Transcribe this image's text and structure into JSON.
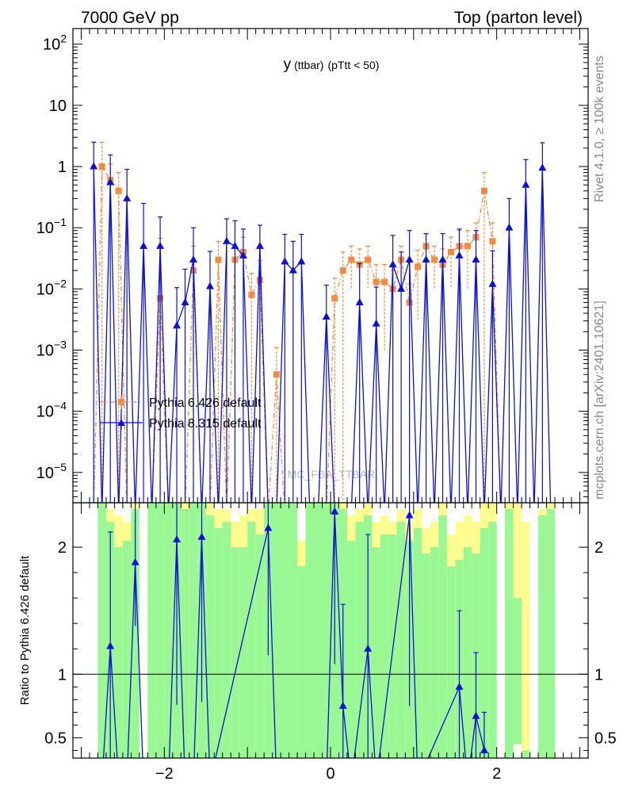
{
  "header": {
    "left": "7000 GeV pp",
    "right": "Top (parton level)"
  },
  "side_labels": {
    "rivet": "Rivet 4.1.0, ≥ 100k events",
    "mcplots": "mcplots.cern.ch [arXiv:2401.10621]"
  },
  "chart_data": [
    {
      "type": "line",
      "panel": "main",
      "title": "y (ttbar) (pTtt < 50)",
      "title_main": "y",
      "title_sub1": "(ttbar)",
      "title_sub2": "(pTtt < 50)",
      "watermark": "MC_FBA_TTBAR",
      "xlabel": "",
      "ylabel": "",
      "yscale": "log",
      "xlim": [
        -3.1,
        3.1
      ],
      "ylim": [
        3.2e-06,
        180
      ],
      "y_ticks": [
        {
          "v": 1e-05,
          "mant": "10",
          "exp": "−5"
        },
        {
          "v": 0.0001,
          "mant": "10",
          "exp": "−4"
        },
        {
          "v": 0.001,
          "mant": "10",
          "exp": "−3"
        },
        {
          "v": 0.01,
          "mant": "10",
          "exp": "−2"
        },
        {
          "v": 0.1,
          "mant": "10",
          "exp": "−1"
        },
        {
          "v": 1,
          "mant": "1",
          "exp": ""
        },
        {
          "v": 10,
          "mant": "10",
          "exp": ""
        },
        {
          "v": 100,
          "mant": "10",
          "exp": "2"
        }
      ],
      "legend_position": "center-left",
      "series": [
        {
          "name": "Pythia 6.426 default",
          "color": "#f58a40",
          "marker": "square",
          "style": "dash-dot",
          "x": [
            -2.85,
            -2.75,
            -2.65,
            -2.55,
            -2.45,
            -2.35,
            -2.25,
            -2.15,
            -2.05,
            -1.95,
            -1.85,
            -1.75,
            -1.65,
            -1.55,
            -1.45,
            -1.35,
            -1.25,
            -1.15,
            -1.05,
            -0.95,
            -0.85,
            -0.75,
            -0.65,
            -0.55,
            -0.45,
            -0.35,
            -0.25,
            -0.15,
            -0.05,
            0.05,
            0.15,
            0.25,
            0.35,
            0.45,
            0.55,
            0.65,
            0.75,
            0.85,
            0.95,
            1.05,
            1.15,
            1.25,
            1.35,
            1.45,
            1.55,
            1.65,
            1.75,
            1.85,
            1.95,
            2.05,
            2.15,
            2.25,
            2.35,
            2.45,
            2.55,
            2.65,
            2.75,
            2.85
          ],
          "y": [
            0,
            1.0,
            0.6,
            0.4,
            0,
            0,
            0,
            0,
            0.007,
            0,
            0,
            0,
            0.02,
            0,
            0,
            0.03,
            0,
            0.03,
            0.04,
            0.008,
            0.014,
            0,
            0.0004,
            0,
            0,
            0,
            0,
            0,
            0,
            0.007,
            0.02,
            0.03,
            0.025,
            0.03,
            0.013,
            0.013,
            0.01,
            0.03,
            0.006,
            0.023,
            0.05,
            0.03,
            0.025,
            0.04,
            0.05,
            0.05,
            0.07,
            0.4,
            0.06,
            0,
            0,
            0,
            0,
            0,
            0,
            0,
            0,
            0
          ],
          "yerr": [
            0,
            1.5,
            0.5,
            0.4,
            0,
            0,
            0,
            0,
            0.06,
            0,
            0,
            0,
            0.03,
            0,
            0,
            0.03,
            0,
            0.02,
            0.03,
            0.01,
            0.015,
            0,
            0.0007,
            0,
            0,
            0,
            0,
            0,
            0,
            0.008,
            0.02,
            0.02,
            0.02,
            0.02,
            0.012,
            0.012,
            0.01,
            0.02,
            0.006,
            0.02,
            0.03,
            0.02,
            0.02,
            0.03,
            0.04,
            0.04,
            0.05,
            0.4,
            0.06,
            0,
            0,
            0,
            0,
            0,
            0,
            0,
            0,
            0
          ]
        },
        {
          "name": "Pythia 8.315 default",
          "color": "#0a10d6",
          "marker": "triangle",
          "style": "solid",
          "x": [
            -2.85,
            -2.75,
            -2.65,
            -2.55,
            -2.45,
            -2.35,
            -2.25,
            -2.15,
            -2.05,
            -1.95,
            -1.85,
            -1.75,
            -1.65,
            -1.55,
            -1.45,
            -1.35,
            -1.25,
            -1.15,
            -1.05,
            -0.95,
            -0.85,
            -0.75,
            -0.65,
            -0.55,
            -0.45,
            -0.35,
            -0.25,
            -0.15,
            -0.05,
            0.05,
            0.15,
            0.25,
            0.35,
            0.45,
            0.55,
            0.65,
            0.75,
            0.85,
            0.95,
            1.05,
            1.15,
            1.25,
            1.35,
            1.45,
            1.55,
            1.65,
            1.75,
            1.85,
            1.95,
            2.05,
            2.15,
            2.25,
            2.35,
            2.45,
            2.55,
            2.65,
            2.75,
            2.85
          ],
          "y": [
            1.0,
            0,
            0.55,
            0,
            0.3,
            0,
            0.05,
            0,
            0.05,
            0,
            0.0025,
            0.006,
            0.03,
            0,
            0.011,
            0,
            0.06,
            0.05,
            0.035,
            0,
            0.05,
            0,
            0,
            0.028,
            0.02,
            0.028,
            0,
            0,
            0.0035,
            0,
            0,
            0,
            0.006,
            0,
            0.0027,
            0,
            0.025,
            0.01,
            0.03,
            0,
            0.03,
            0,
            0.03,
            0,
            0.035,
            0,
            0.03,
            0,
            0.012,
            0,
            0.1,
            0,
            0.5,
            0,
            0.95,
            0,
            0,
            0
          ],
          "yerr": [
            1.5,
            0,
            1.0,
            0,
            0.6,
            0,
            0.2,
            0,
            0.1,
            0,
            0.008,
            0.015,
            0.07,
            0,
            0.03,
            0,
            0.08,
            0.08,
            0.06,
            0,
            0.06,
            0,
            0,
            0.05,
            0.04,
            0.05,
            0,
            0,
            0.008,
            0,
            0,
            0,
            0.02,
            0,
            0.008,
            0,
            0.05,
            0.03,
            0.06,
            0,
            0.05,
            0,
            0.05,
            0,
            0.06,
            0,
            0.06,
            0,
            0.03,
            0,
            0.2,
            0,
            0.8,
            0,
            1.5,
            0,
            0,
            0
          ]
        }
      ]
    },
    {
      "type": "line",
      "panel": "ratio",
      "ylabel": "Ratio to Pythia 6.426 default",
      "xlim": [
        -3.1,
        3.1
      ],
      "ylim": [
        0.34,
        2.35
      ],
      "x_ticks": [
        {
          "v": -2,
          "label": "−2"
        },
        {
          "v": 0,
          "label": "0"
        },
        {
          "v": 2,
          "label": "2"
        }
      ],
      "y_ticks": [
        {
          "v": 0.5,
          "label": "0.5"
        },
        {
          "v": 1,
          "label": "1"
        },
        {
          "v": 2,
          "label": "2"
        }
      ],
      "reference_line": 1,
      "band_colors": {
        "inner": "#99f893",
        "outer": "#fffd8f"
      },
      "band_bins": [
        {
          "x0": -2.8,
          "x1": -2.7,
          "lo": 0.34,
          "hi": 2.35,
          "hi2": 2.35
        },
        {
          "x0": -2.7,
          "x1": -2.6,
          "lo": 0.34,
          "hi": 2.2,
          "hi2": 2.3
        },
        {
          "x0": -2.6,
          "x1": -2.5,
          "lo": 0.34,
          "hi": 2.0,
          "hi2": 2.25
        },
        {
          "x0": -2.5,
          "x1": -2.4,
          "lo": 0.34,
          "hi": 2.05,
          "hi2": 2.2
        },
        {
          "x0": -2.4,
          "x1": -2.3,
          "lo": 0.34,
          "hi": 2.3,
          "hi2": 2.35
        },
        {
          "x0": -2.2,
          "x1": -2.1,
          "lo": 0.34,
          "hi": 2.35,
          "hi2": 2.35
        },
        {
          "x0": -2.1,
          "x1": -2.0,
          "lo": 0.34,
          "hi": 2.35,
          "hi2": 2.35
        },
        {
          "x0": -2.0,
          "x1": -1.9,
          "lo": 0.34,
          "hi": 2.35,
          "hi2": 2.35
        },
        {
          "x0": -1.9,
          "x1": -1.8,
          "lo": 0.34,
          "hi": 2.35,
          "hi2": 2.35
        },
        {
          "x0": -1.8,
          "x1": -1.7,
          "lo": 0.34,
          "hi": 2.3,
          "hi2": 2.35
        },
        {
          "x0": -1.7,
          "x1": -1.6,
          "lo": 0.34,
          "hi": 2.35,
          "hi2": 2.35
        },
        {
          "x0": -1.6,
          "x1": -1.5,
          "lo": 0.34,
          "hi": 2.35,
          "hi2": 2.35
        },
        {
          "x0": -1.5,
          "x1": -1.4,
          "lo": 0.34,
          "hi": 2.25,
          "hi2": 2.35
        },
        {
          "x0": -1.4,
          "x1": -1.3,
          "lo": 0.34,
          "hi": 2.15,
          "hi2": 2.3
        },
        {
          "x0": -1.3,
          "x1": -1.2,
          "lo": 0.34,
          "hi": 2.2,
          "hi2": 2.3
        },
        {
          "x0": -1.2,
          "x1": -1.1,
          "lo": 0.34,
          "hi": 2.0,
          "hi2": 2.2
        },
        {
          "x0": -1.1,
          "x1": -1.0,
          "lo": 0.34,
          "hi": 2.0,
          "hi2": 2.25
        },
        {
          "x0": -1.0,
          "x1": -0.9,
          "lo": 0.34,
          "hi": 2.2,
          "hi2": 2.3
        },
        {
          "x0": -0.9,
          "x1": -0.8,
          "lo": 0.34,
          "hi": 2.1,
          "hi2": 2.3
        },
        {
          "x0": -0.8,
          "x1": -0.7,
          "lo": 0.34,
          "hi": 2.35,
          "hi2": 2.35
        },
        {
          "x0": -0.7,
          "x1": -0.6,
          "lo": 0.34,
          "hi": 2.35,
          "hi2": 2.35
        },
        {
          "x0": -0.6,
          "x1": -0.5,
          "lo": 0.34,
          "hi": 2.35,
          "hi2": 2.35
        },
        {
          "x0": -0.5,
          "x1": -0.4,
          "lo": 0.34,
          "hi": 2.35,
          "hi2": 2.35
        },
        {
          "x0": -0.4,
          "x1": -0.3,
          "lo": 0.34,
          "hi": 1.85,
          "hi2": 2.05
        },
        {
          "x0": -0.3,
          "x1": -0.2,
          "lo": 0.34,
          "hi": 2.35,
          "hi2": 2.35
        },
        {
          "x0": -0.2,
          "x1": -0.1,
          "lo": 0.34,
          "hi": 2.35,
          "hi2": 2.35
        },
        {
          "x0": -0.1,
          "x1": 0.0,
          "lo": 0.34,
          "hi": 2.35,
          "hi2": 2.35
        },
        {
          "x0": 0.0,
          "x1": 0.1,
          "lo": 0.34,
          "hi": 2.35,
          "hi2": 2.35
        },
        {
          "x0": 0.1,
          "x1": 0.2,
          "lo": 0.34,
          "hi": 2.3,
          "hi2": 2.35
        },
        {
          "x0": 0.2,
          "x1": 0.3,
          "lo": 0.34,
          "hi": 2.05,
          "hi2": 2.25
        },
        {
          "x0": 0.3,
          "x1": 0.4,
          "lo": 0.34,
          "hi": 2.2,
          "hi2": 2.3
        },
        {
          "x0": 0.4,
          "x1": 0.5,
          "lo": 0.34,
          "hi": 2.25,
          "hi2": 2.35
        },
        {
          "x0": 0.5,
          "x1": 0.6,
          "lo": 0.34,
          "hi": 2.0,
          "hi2": 2.2
        },
        {
          "x0": 0.6,
          "x1": 0.7,
          "lo": 0.34,
          "hi": 2.1,
          "hi2": 2.25
        },
        {
          "x0": 0.7,
          "x1": 0.8,
          "lo": 0.34,
          "hi": 2.1,
          "hi2": 2.2
        },
        {
          "x0": 0.8,
          "x1": 0.9,
          "lo": 0.34,
          "hi": 2.2,
          "hi2": 2.3
        },
        {
          "x0": 0.9,
          "x1": 1.0,
          "lo": 0.34,
          "hi": 2.05,
          "hi2": 2.2
        },
        {
          "x0": 1.0,
          "x1": 1.1,
          "lo": 0.34,
          "hi": 2.15,
          "hi2": 2.3
        },
        {
          "x0": 1.1,
          "x1": 1.2,
          "lo": 0.34,
          "hi": 1.95,
          "hi2": 2.15
        },
        {
          "x0": 1.2,
          "x1": 1.3,
          "lo": 0.34,
          "hi": 2.0,
          "hi2": 2.2
        },
        {
          "x0": 1.3,
          "x1": 1.4,
          "lo": 0.34,
          "hi": 2.25,
          "hi2": 2.35
        },
        {
          "x0": 1.4,
          "x1": 1.5,
          "lo": 0.34,
          "hi": 1.85,
          "hi2": 2.1
        },
        {
          "x0": 1.5,
          "x1": 1.6,
          "lo": 0.34,
          "hi": 1.9,
          "hi2": 2.2
        },
        {
          "x0": 1.6,
          "x1": 1.7,
          "lo": 0.34,
          "hi": 2.0,
          "hi2": 2.25
        },
        {
          "x0": 1.7,
          "x1": 1.8,
          "lo": 0.34,
          "hi": 1.95,
          "hi2": 2.2
        },
        {
          "x0": 1.8,
          "x1": 1.9,
          "lo": 0.34,
          "hi": 2.15,
          "hi2": 2.35
        },
        {
          "x0": 1.9,
          "x1": 2.0,
          "lo": 0.34,
          "hi": 2.2,
          "hi2": 2.35
        },
        {
          "x0": 2.1,
          "x1": 2.2,
          "lo": 0.34,
          "hi": 2.3,
          "hi2": 2.35
        },
        {
          "x0": 2.2,
          "x1": 2.3,
          "lo": 0.45,
          "hi": 1.6,
          "hi2": 2.35
        },
        {
          "x0": 2.3,
          "x1": 2.4,
          "lo": 0.34,
          "hi": 0.4,
          "hi2": 2.2
        },
        {
          "x0": 2.5,
          "x1": 2.6,
          "lo": 0.34,
          "hi": 2.25,
          "hi2": 2.3
        },
        {
          "x0": 2.6,
          "x1": 2.7,
          "lo": 0.34,
          "hi": 2.3,
          "hi2": 2.35
        }
      ],
      "series": [
        {
          "name": "Pythia 8.315 / Pythia 6.426 default",
          "color": "#0a10d6",
          "x": [
            -2.75,
            -2.65,
            -2.55,
            -2.45,
            -2.35,
            -2.25,
            -1.95,
            -1.85,
            -1.75,
            -1.65,
            -1.55,
            -1.45,
            -0.75,
            -0.65,
            -0.05,
            0.05,
            0.15,
            0.25,
            0.45,
            0.55,
            0.95,
            1.05,
            1.55,
            1.65,
            1.75,
            1.85
          ],
          "y": [
            0,
            1.22,
            0,
            0,
            1.88,
            0,
            0,
            2.06,
            0,
            0,
            2.08,
            0,
            2.15,
            0,
            0,
            2.28,
            0.75,
            0,
            1.2,
            0,
            2.25,
            0,
            0.9,
            0,
            0.67,
            0.4
          ],
          "yerr": [
            0,
            0.9,
            0,
            0,
            0.5,
            0,
            0,
            1.3,
            0,
            0,
            1.3,
            0,
            1.0,
            0,
            0,
            1.2,
            0.8,
            0,
            0.9,
            0,
            1.5,
            0,
            0.6,
            0,
            0.5,
            0.3
          ]
        }
      ]
    }
  ]
}
